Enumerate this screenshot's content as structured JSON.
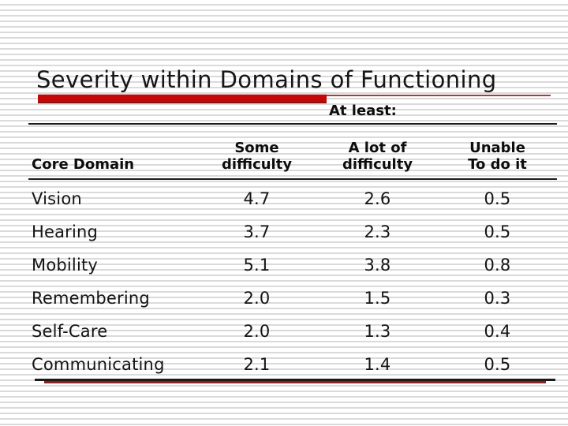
{
  "slide": {
    "title": "Severity within Domains of Functioning",
    "note": "At least:"
  },
  "table": {
    "headers": [
      [
        "",
        "Core Domain"
      ],
      [
        "Some",
        "difficulty"
      ],
      [
        "A lot of",
        "difficulty"
      ],
      [
        "Unable",
        "To do it"
      ]
    ],
    "rows": [
      [
        "Vision",
        "4.7",
        "2.6",
        "0.5"
      ],
      [
        "Hearing",
        "3.7",
        "2.3",
        "0.5"
      ],
      [
        "Mobility",
        "5.1",
        "3.8",
        "0.8"
      ],
      [
        "Remembering",
        "2.0",
        "1.5",
        "0.3"
      ],
      [
        "Self-Care",
        "2.0",
        "1.3",
        "0.4"
      ],
      [
        "Communicating",
        "2.1",
        "1.4",
        "0.5"
      ]
    ]
  },
  "chart_data": {
    "type": "table",
    "title": "Severity within Domains of Functioning",
    "note": "At least:",
    "columns": [
      "Core Domain",
      "Some difficulty",
      "A lot of difficulty",
      "Unable To do it"
    ],
    "rows": [
      {
        "domain": "Vision",
        "some_difficulty": 4.7,
        "a_lot_of_difficulty": 2.6,
        "unable_to_do_it": 0.5
      },
      {
        "domain": "Hearing",
        "some_difficulty": 3.7,
        "a_lot_of_difficulty": 2.3,
        "unable_to_do_it": 0.5
      },
      {
        "domain": "Mobility",
        "some_difficulty": 5.1,
        "a_lot_of_difficulty": 3.8,
        "unable_to_do_it": 0.8
      },
      {
        "domain": "Remembering",
        "some_difficulty": 2.0,
        "a_lot_of_difficulty": 1.5,
        "unable_to_do_it": 0.3
      },
      {
        "domain": "Self-Care",
        "some_difficulty": 2.0,
        "a_lot_of_difficulty": 1.3,
        "unable_to_do_it": 0.4
      },
      {
        "domain": "Communicating",
        "some_difficulty": 2.1,
        "a_lot_of_difficulty": 1.4,
        "unable_to_do_it": 0.5
      }
    ]
  },
  "colors": {
    "accent_red_bar": "#c40808",
    "thin_underline": "#a24038",
    "bottom_double_rule_red": "#8b2020",
    "rule_black": "#1c1c1c",
    "stripe_gray": "#dadada",
    "text": "#141414"
  }
}
